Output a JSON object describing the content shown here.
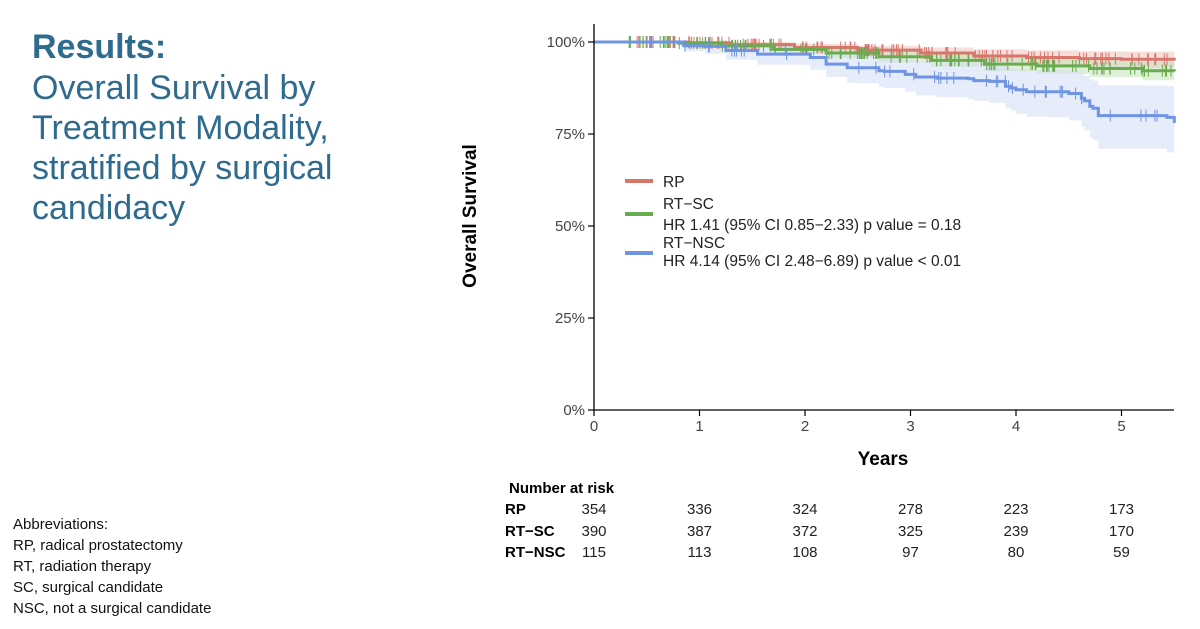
{
  "slide": {
    "heading": "Results:",
    "subtitle_lines": [
      "Overall Survival by",
      "Treatment Modality,",
      "stratified by surgical",
      "candidacy"
    ]
  },
  "abbreviations": {
    "title": "Abbreviations:",
    "items": [
      "RP, radical prostatectomy",
      "RT, radiation therapy",
      "SC, surgical candidate",
      "NSC, not a surgical candidate"
    ]
  },
  "chart_data": {
    "type": "line",
    "subtype": "kaplan-meier",
    "xlabel": "Years",
    "ylabel": "Overall Survival",
    "xlim": [
      0,
      5.5
    ],
    "ylim": [
      0,
      1
    ],
    "x_ticks": [
      "0",
      "1",
      "2",
      "3",
      "4",
      "5"
    ],
    "y_ticks": [
      "0%",
      "25%",
      "50%",
      "75%",
      "100%"
    ],
    "grid": false,
    "legend_position": "center",
    "series": [
      {
        "name": "RP",
        "hr_text": "",
        "color": "#d9766c",
        "band_color": "#f1c2bd",
        "x": [
          0,
          0.9,
          1.3,
          1.9,
          2.5,
          3.1,
          3.6,
          4.1,
          4.6,
          5.0,
          5.5
        ],
        "y": [
          1.0,
          0.998,
          0.993,
          0.985,
          0.978,
          0.97,
          0.962,
          0.958,
          0.955,
          0.953,
          0.95
        ],
        "lo": [
          1.0,
          0.993,
          0.985,
          0.975,
          0.965,
          0.955,
          0.945,
          0.938,
          0.933,
          0.93,
          0.926
        ],
        "hi": [
          1.0,
          1.0,
          1.0,
          0.995,
          0.99,
          0.985,
          0.98,
          0.977,
          0.975,
          0.974,
          0.973
        ]
      },
      {
        "name": "RT−SC",
        "hr_text": "HR 1.41 (95% CI 0.85−2.33) p value = 0.18",
        "color": "#6aab4f",
        "band_color": "#c5e2b8",
        "x": [
          0,
          0.8,
          1.2,
          1.7,
          2.2,
          2.7,
          3.2,
          3.7,
          4.2,
          4.7,
          5.2,
          5.5
        ],
        "y": [
          1.0,
          0.997,
          0.99,
          0.98,
          0.97,
          0.96,
          0.95,
          0.94,
          0.935,
          0.928,
          0.922,
          0.92
        ],
        "lo": [
          1.0,
          0.99,
          0.982,
          0.97,
          0.958,
          0.945,
          0.933,
          0.921,
          0.913,
          0.904,
          0.896,
          0.893
        ],
        "hi": [
          1.0,
          1.0,
          0.998,
          0.99,
          0.982,
          0.975,
          0.967,
          0.959,
          0.955,
          0.95,
          0.946,
          0.945
        ]
      },
      {
        "name": "RT−NSC",
        "hr_text": "HR 4.14 (95% CI 2.48−6.89) p value < 0.01",
        "color": "#6e94e3",
        "band_color": "#d2ddf6",
        "x": [
          0,
          0.85,
          1.05,
          1.25,
          1.55,
          2.05,
          2.2,
          2.4,
          2.5,
          2.7,
          2.75,
          2.95,
          3.05,
          3.25,
          3.55,
          3.6,
          3.75,
          3.9,
          3.95,
          4.0,
          4.1,
          4.3,
          4.5,
          4.62,
          4.65,
          4.7,
          4.73,
          4.78,
          5.43,
          5.5
        ],
        "y": [
          1.0,
          0.99,
          0.988,
          0.977,
          0.967,
          0.958,
          0.94,
          0.93,
          0.93,
          0.922,
          0.92,
          0.912,
          0.905,
          0.902,
          0.9,
          0.895,
          0.893,
          0.88,
          0.875,
          0.87,
          0.865,
          0.865,
          0.86,
          0.847,
          0.84,
          0.825,
          0.82,
          0.8,
          0.795,
          0.78
        ],
        "lo": [
          1.0,
          0.975,
          0.968,
          0.952,
          0.938,
          0.925,
          0.905,
          0.89,
          0.888,
          0.878,
          0.875,
          0.865,
          0.855,
          0.85,
          0.845,
          0.84,
          0.835,
          0.82,
          0.813,
          0.805,
          0.797,
          0.795,
          0.787,
          0.77,
          0.76,
          0.74,
          0.733,
          0.71,
          0.7,
          0.69
        ],
        "hi": [
          1.0,
          1.0,
          1.0,
          0.997,
          0.99,
          0.985,
          0.972,
          0.965,
          0.965,
          0.96,
          0.958,
          0.952,
          0.948,
          0.945,
          0.945,
          0.942,
          0.94,
          0.932,
          0.928,
          0.925,
          0.922,
          0.923,
          0.92,
          0.912,
          0.908,
          0.898,
          0.895,
          0.882,
          0.88,
          0.868
        ]
      }
    ],
    "risk_table": {
      "title": "Number at risk",
      "rows": [
        {
          "label": "RP",
          "values": [
            "354",
            "336",
            "324",
            "278",
            "223",
            "173"
          ]
        },
        {
          "label": "RT−SC",
          "values": [
            "390",
            "387",
            "372",
            "325",
            "239",
            "170"
          ]
        },
        {
          "label": "RT−NSC",
          "values": [
            "115",
            "113",
            "108",
            "97",
            "80",
            "59"
          ]
        }
      ]
    }
  }
}
